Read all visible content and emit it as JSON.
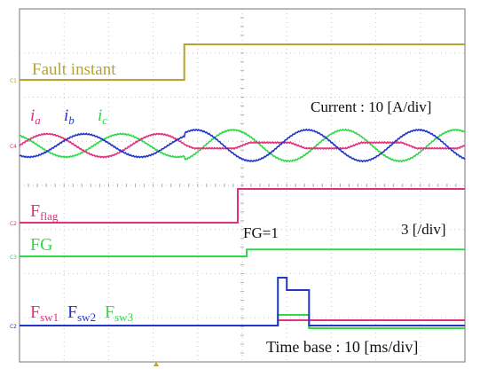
{
  "chart_data": {
    "type": "line",
    "annotations": {
      "fault_instant": "Fault instant",
      "current_scale": "Current : 10 [A/div]",
      "flag_scale": "3 [/div]",
      "fg_value": "FG=1",
      "time_base": "Time base : 10 [ms/div]"
    },
    "x_unit": "ms",
    "x_range": [
      -50,
      50
    ],
    "fault_time_ms": -13,
    "grid": true,
    "graticule": {
      "x_divisions": 10,
      "y_divisions": 8
    },
    "channel_markers": [
      "C1",
      "C4",
      "C2",
      "C3",
      "C2"
    ],
    "colors": {
      "yellow": "#b7a428",
      "pink": "#e2307c",
      "blue": "#2236c8",
      "green": "#30d84a"
    },
    "series": [
      {
        "name": "Fault instant",
        "color": "#b7a428",
        "points": [
          [
            -50,
            0
          ],
          [
            -13,
            0
          ],
          [
            -13,
            1
          ],
          [
            50,
            1
          ]
        ]
      },
      {
        "name": "ia",
        "color": "#e2307c",
        "amplitude_A": 10,
        "frequency_hz": 40,
        "phase_deg": 0,
        "note_after_fault": "flattened"
      },
      {
        "name": "ib",
        "color": "#2236c8",
        "amplitude_A": 10,
        "frequency_hz": 40,
        "phase_deg": -120,
        "gain_after_fault": 1.35
      },
      {
        "name": "ic",
        "color": "#30d84a",
        "amplitude_A": 10,
        "frequency_hz": 40,
        "phase_deg": 120,
        "gain_after_fault": 1.35
      },
      {
        "name": "Fflag",
        "color": "#e2307c",
        "points": [
          [
            -50,
            0
          ],
          [
            -1,
            0
          ],
          [
            -1,
            1
          ],
          [
            50,
            1
          ]
        ]
      },
      {
        "name": "FG",
        "color": "#30d84a",
        "points": [
          [
            -50,
            0
          ],
          [
            1,
            0
          ],
          [
            1,
            0.6
          ],
          [
            50,
            0.6
          ]
        ]
      },
      {
        "name": "Fsw1",
        "color": "#e2307c",
        "points": [
          [
            -50,
            0
          ],
          [
            8,
            0
          ],
          [
            8,
            0.6
          ],
          [
            15,
            0.6
          ],
          [
            15,
            0.6
          ],
          [
            50,
            0.6
          ]
        ]
      },
      {
        "name": "Fsw2",
        "color": "#2236c8",
        "points": [
          [
            -50,
            0
          ],
          [
            8,
            0
          ],
          [
            8,
            2.7
          ],
          [
            10,
            2.7
          ],
          [
            10,
            2.0
          ],
          [
            15,
            2.0
          ],
          [
            15,
            0
          ],
          [
            50,
            0
          ]
        ]
      },
      {
        "name": "Fsw3",
        "color": "#30d84a",
        "points": [
          [
            -50,
            0
          ],
          [
            8,
            0
          ],
          [
            8,
            1.2
          ],
          [
            15,
            1.2
          ],
          [
            15,
            -0.3
          ],
          [
            50,
            -0.3
          ]
        ]
      }
    ]
  }
}
